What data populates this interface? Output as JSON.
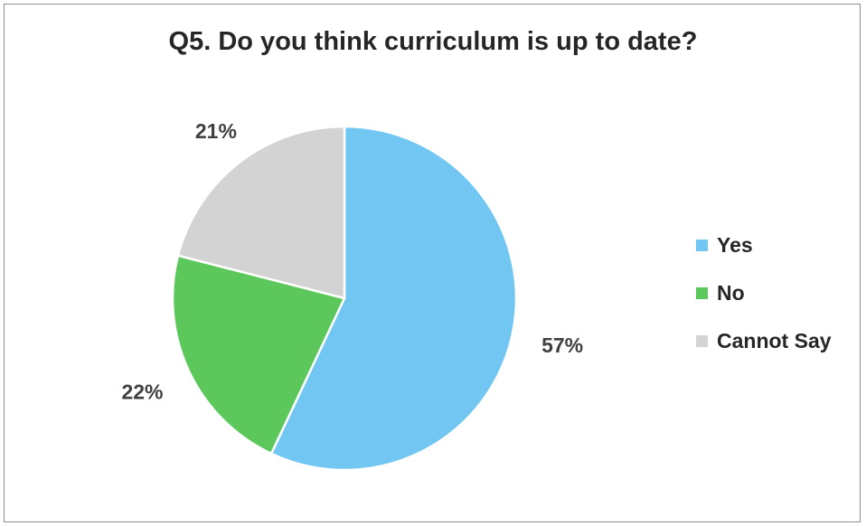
{
  "chart_data": {
    "type": "pie",
    "title": "Q5. Do you think curriculum is up to date?",
    "slices": [
      {
        "label": "Yes",
        "value": 57,
        "display": "57%",
        "color": "#72C7F2"
      },
      {
        "label": "No",
        "value": 22,
        "display": "22%",
        "color": "#5CC85C"
      },
      {
        "label": "Cannot Say",
        "value": 21,
        "display": "21%",
        "color": "#D3D3D3"
      }
    ],
    "legend_position": "right"
  }
}
